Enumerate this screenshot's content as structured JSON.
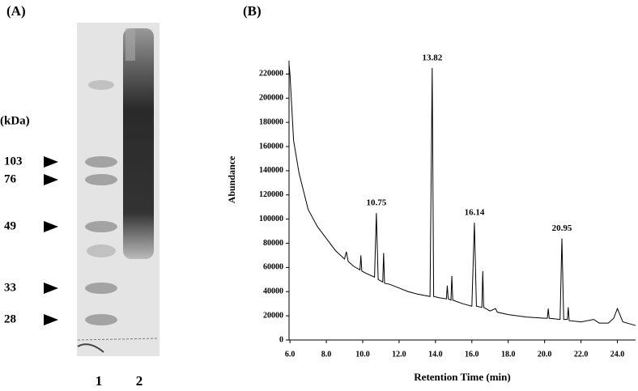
{
  "panel_a": {
    "label": "(A)",
    "unit": "(kDa)",
    "markers": [
      103,
      76,
      49,
      33,
      28
    ],
    "lanes": [
      "1",
      "2"
    ]
  },
  "chart_data": {
    "type": "line",
    "panel_label": "(B)",
    "x_label": "Retention Time (min)",
    "y_label": "Abundance",
    "x": [
      5.95,
      6.0,
      6.2,
      6.5,
      7.0,
      7.5,
      8.0,
      8.5,
      9.0,
      9.1,
      9.2,
      9.5,
      9.85,
      9.9,
      9.95,
      10.2,
      10.65,
      10.75,
      10.85,
      11.1,
      11.15,
      11.2,
      11.5,
      12.0,
      12.5,
      13.0,
      13.7,
      13.82,
      13.9,
      14.2,
      14.6,
      14.65,
      14.7,
      14.85,
      14.9,
      14.95,
      15.5,
      16.0,
      16.14,
      16.25,
      16.55,
      16.6,
      16.65,
      17.0,
      17.3,
      17.4,
      18.0,
      19.0,
      20.0,
      20.15,
      20.2,
      20.25,
      20.85,
      20.95,
      21.05,
      21.25,
      21.3,
      21.35,
      22.0,
      22.7,
      23.0,
      23.5,
      23.8,
      24.0,
      24.3,
      25.0
    ],
    "series": [
      {
        "color": "#000000",
        "values": [
          228000,
          220000,
          165000,
          138000,
          108000,
          94000,
          84000,
          74000,
          67000,
          73000,
          65000,
          61000,
          58000,
          70000,
          57000,
          55000,
          52000,
          105000,
          50000,
          48000,
          72000,
          47000,
          46000,
          43000,
          40000,
          38000,
          36000,
          225000,
          36000,
          35000,
          34000,
          45000,
          34000,
          33000,
          53000,
          33000,
          30000,
          28000,
          97000,
          28000,
          27000,
          57000,
          27000,
          24000,
          26000,
          23000,
          21000,
          19000,
          18000,
          18000,
          26000,
          18000,
          17000,
          84000,
          17000,
          17000,
          27000,
          16000,
          15000,
          17000,
          14000,
          14000,
          18000,
          26000,
          15000,
          12000
        ]
      }
    ],
    "annotations": [
      {
        "x": 10.75,
        "y": 105000
      },
      {
        "x": 13.82,
        "y": 225000
      },
      {
        "x": 16.14,
        "y": 97000
      },
      {
        "x": 20.95,
        "y": 84000
      }
    ],
    "xlim": [
      5.95,
      25
    ],
    "ylim": [
      0,
      231000
    ],
    "xticks": [
      {
        "value": 6,
        "label": "6.0"
      },
      {
        "value": 8,
        "label": "8.0"
      },
      {
        "value": 10,
        "label": "10.0"
      },
      {
        "value": 12,
        "label": "12.0"
      },
      {
        "value": 14,
        "label": "14.0"
      },
      {
        "value": 16,
        "label": "16.0"
      },
      {
        "value": 18,
        "label": "18.0"
      },
      {
        "value": 20,
        "label": "20.0"
      },
      {
        "value": 22,
        "label": "22.0"
      },
      {
        "value": 24,
        "label": "24.0"
      }
    ],
    "yticks": [
      0,
      20000,
      40000,
      60000,
      80000,
      100000,
      120000,
      140000,
      160000,
      180000,
      200000,
      220000
    ]
  }
}
